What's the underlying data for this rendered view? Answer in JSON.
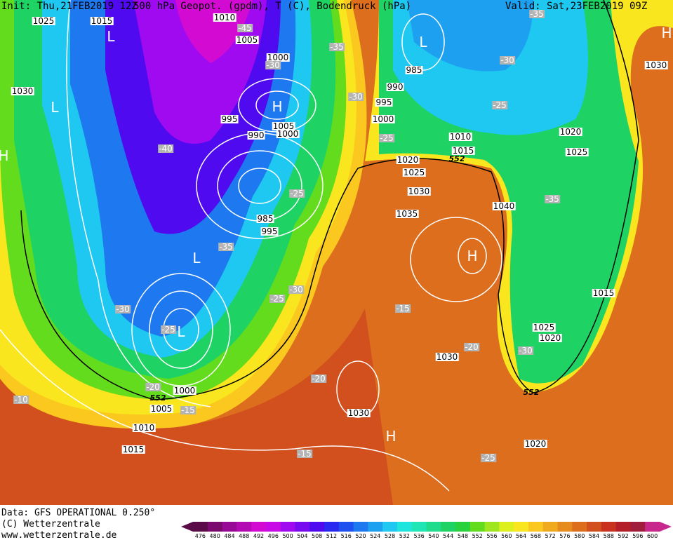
{
  "header": {
    "init": "Init: Thu,21FEB2019 12Z",
    "title": "500 hPa Geopot. (gpdm), T (C), Bodendruck (hPa)",
    "valid": "Valid: Sat,23FEB2019 09Z"
  },
  "footer": {
    "data": "Data: GFS OPERATIONAL 0.250°",
    "copyright": "(C) Wetterzentrale",
    "url": "www.wetterzentrale.de"
  },
  "colorbar": {
    "ticks": [
      476,
      480,
      484,
      488,
      492,
      496,
      500,
      504,
      508,
      512,
      516,
      520,
      524,
      528,
      532,
      536,
      540,
      544,
      548,
      552,
      556,
      560,
      564,
      568,
      572,
      576,
      580,
      584,
      588,
      592,
      596,
      600
    ],
    "colors": [
      "#5a0a46",
      "#7a0a6e",
      "#960a96",
      "#b40ab4",
      "#d20ad2",
      "#c80ae6",
      "#a00af0",
      "#780af0",
      "#500af0",
      "#2828f0",
      "#1e50f0",
      "#1e78f0",
      "#1ea0f0",
      "#1ec8f0",
      "#1ee6dc",
      "#1ee6b4",
      "#1edc8c",
      "#1ed264",
      "#28d23c",
      "#64dc1e",
      "#a0e61e",
      "#dcf01e",
      "#fae61e",
      "#fac81e",
      "#f0aa1e",
      "#e68c1e",
      "#dc6e1e",
      "#d2501e",
      "#c8321e",
      "#b41e28",
      "#a01e3c",
      "#c8288c"
    ]
  },
  "map": {
    "pressure_labels": [
      1025,
      1015,
      1010,
      1005,
      1000,
      1030,
      995,
      990,
      1005,
      1000,
      985,
      990,
      995,
      1000,
      1010,
      1015,
      1020,
      1025,
      1030,
      1035,
      1040,
      985,
      995,
      1020,
      1025,
      1030,
      1015,
      1025,
      1020,
      1030,
      1030,
      1000,
      1005,
      1010,
      1015,
      1020
    ],
    "temperature_labels": [
      -45,
      -35,
      -30,
      -30,
      -25,
      -40,
      -25,
      -35,
      -30,
      -25,
      -30,
      -25,
      -20,
      -15,
      -10,
      -20,
      -15,
      -15,
      -20,
      -30,
      -35,
      -25,
      -30,
      -25,
      -35
    ],
    "systems": [
      "L",
      "L",
      "H",
      "L",
      "H",
      "H",
      "L",
      "L",
      "H",
      "H"
    ],
    "geopotential_labels": [
      552,
      552,
      552
    ]
  }
}
